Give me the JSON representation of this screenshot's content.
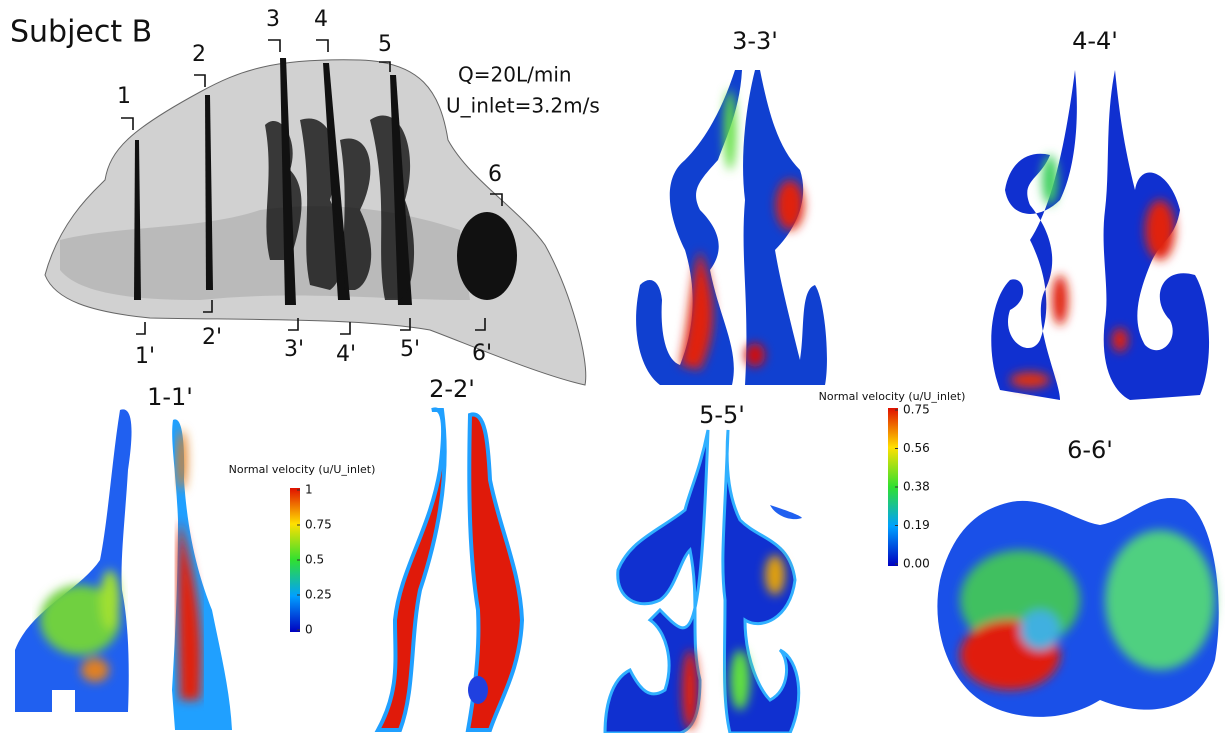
{
  "title": "Subject B",
  "conditions": [
    "Q=20L/min",
    "U_inlet=3.2m/s"
  ],
  "section_labels": {
    "top": [
      "1",
      "2",
      "3",
      "4",
      "5",
      "6"
    ],
    "bottom": [
      "1'",
      "2'",
      "3'",
      "4'",
      "5'",
      "6'"
    ]
  },
  "panels": [
    "1-1'",
    "2-2'",
    "3-3'",
    "4-4'",
    "5-5'",
    "6-6'"
  ],
  "colorbars": [
    {
      "title": "Normal velocity (u/U_inlet)",
      "ticks": [
        "1",
        "0.75",
        "0.5",
        "0.25",
        "0"
      ]
    },
    {
      "title": "Normal velocity (u/U_inlet)",
      "ticks": [
        "0.75",
        "0.56",
        "0.38",
        "0.19",
        "0.00"
      ]
    }
  ]
}
